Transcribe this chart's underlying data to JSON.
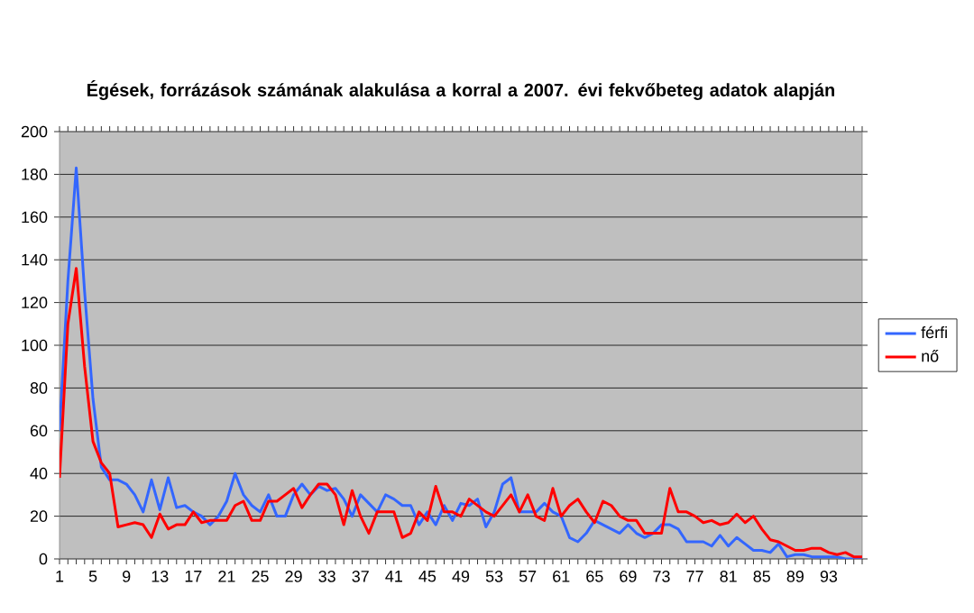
{
  "chart_data": {
    "type": "line",
    "title": "Égések, forrázások számának alakulása a korral a 2007. évi fekvőbeteg adatok alapján",
    "categories": [
      "1",
      null,
      null,
      null,
      "5",
      null,
      null,
      null,
      "9",
      null,
      null,
      null,
      "13",
      null,
      null,
      null,
      "17",
      null,
      null,
      null,
      "21",
      null,
      null,
      null,
      "25",
      null,
      null,
      null,
      "29",
      null,
      null,
      null,
      "33",
      null,
      null,
      null,
      "37",
      null,
      null,
      null,
      "41",
      null,
      null,
      null,
      "45",
      null,
      null,
      null,
      "49",
      null,
      null,
      null,
      "53",
      null,
      null,
      null,
      "57",
      null,
      null,
      null,
      "61",
      null,
      null,
      null,
      "65",
      null,
      null,
      null,
      "69",
      null,
      null,
      null,
      "73",
      null,
      null,
      null,
      "77",
      null,
      null,
      null,
      "81",
      null,
      null,
      null,
      "85",
      null,
      null,
      null,
      "89",
      null,
      null,
      null,
      "93",
      null,
      null,
      null,
      null
    ],
    "series": [
      {
        "name": "férfi",
        "color": "#3366ff",
        "values": [
          60,
          130,
          183,
          125,
          75,
          43,
          37,
          37,
          35,
          30,
          22,
          37,
          23,
          38,
          24,
          25,
          22,
          20,
          16,
          20,
          27,
          40,
          30,
          25,
          22,
          30,
          20,
          20,
          30,
          35,
          30,
          34,
          32,
          33,
          28,
          20,
          30,
          26,
          22,
          30,
          28,
          25,
          25,
          16,
          22,
          16,
          25,
          18,
          26,
          25,
          28,
          15,
          22,
          35,
          38,
          22,
          22,
          22,
          26,
          22,
          20,
          10,
          8,
          12,
          18,
          16,
          14,
          12,
          16,
          12,
          10,
          12,
          16,
          16,
          14,
          8,
          8,
          8,
          6,
          11,
          6,
          10,
          7,
          4,
          4,
          3,
          7,
          1,
          2,
          2,
          1,
          1,
          1,
          1,
          0,
          0,
          0
        ]
      },
      {
        "name": "nő",
        "color": "#ff0000",
        "values": [
          38,
          110,
          136,
          90,
          55,
          45,
          40,
          15,
          16,
          17,
          16,
          10,
          21,
          14,
          16,
          16,
          22,
          17,
          18,
          18,
          18,
          25,
          27,
          18,
          18,
          27,
          27,
          30,
          33,
          24,
          30,
          35,
          35,
          30,
          16,
          32,
          20,
          12,
          22,
          22,
          22,
          10,
          12,
          22,
          18,
          34,
          22,
          22,
          20,
          28,
          25,
          22,
          20,
          25,
          30,
          22,
          30,
          20,
          18,
          33,
          20,
          25,
          28,
          22,
          17,
          27,
          25,
          20,
          18,
          18,
          12,
          12,
          12,
          33,
          22,
          22,
          20,
          17,
          18,
          16,
          17,
          21,
          17,
          20,
          14,
          9,
          8,
          6,
          4,
          4,
          5,
          5,
          3,
          2,
          3,
          1,
          1
        ]
      }
    ],
    "ylim": [
      0,
      200
    ],
    "yticks": [
      0,
      20,
      40,
      60,
      80,
      100,
      120,
      140,
      160,
      180,
      200
    ],
    "grid": "y",
    "legend": "right",
    "marker": "none"
  }
}
